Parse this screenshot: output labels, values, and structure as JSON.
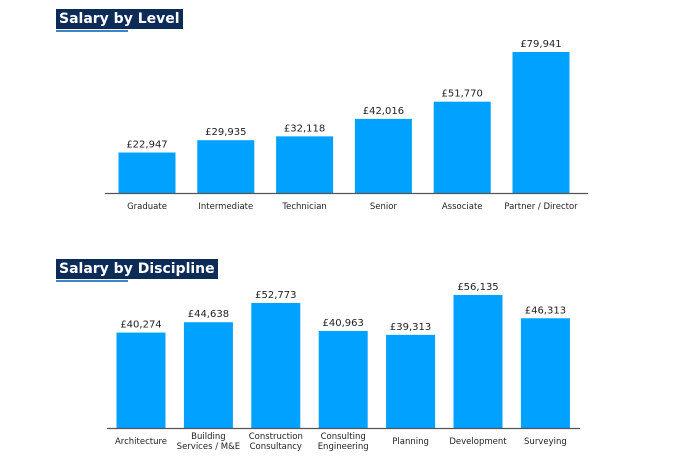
{
  "colors": {
    "bar": "#00a1ff",
    "title_bg": "#0d2b57",
    "axis": "#555555"
  },
  "chart_data": [
    {
      "type": "bar",
      "title": "Salary by Level",
      "categories": [
        [
          "Graduate"
        ],
        [
          "Intermediate"
        ],
        [
          "Technician"
        ],
        [
          "Senior"
        ],
        [
          "Associate"
        ],
        [
          "Partner / Director"
        ]
      ],
      "values": [
        22947,
        29935,
        32118,
        42016,
        51770,
        79941
      ],
      "value_labels": [
        "£22,947",
        "£29,935",
        "£32,118",
        "£42,016",
        "£51,770",
        "£79,941"
      ],
      "grid": false
    },
    {
      "type": "bar",
      "title": "Salary by Discipline",
      "categories": [
        [
          "Architecture"
        ],
        [
          "Building",
          "Services / M&E"
        ],
        [
          "Construction",
          "Consultancy"
        ],
        [
          "Consulting",
          "Engineering"
        ],
        [
          "Planning"
        ],
        [
          "Development"
        ],
        [
          "Surveying"
        ]
      ],
      "values": [
        40274,
        44638,
        52773,
        40963,
        39313,
        56135,
        46313
      ],
      "value_labels": [
        "£40,274",
        "£44,638",
        "£52,773",
        "£40,963",
        "£39,313",
        "£56,135",
        "£46,313"
      ],
      "grid": false
    }
  ]
}
